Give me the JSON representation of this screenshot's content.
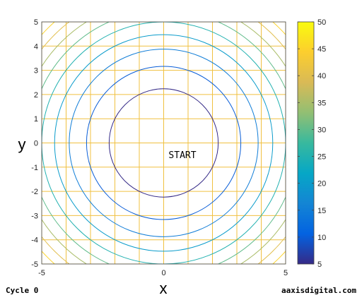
{
  "chart_data": {
    "type": "contour",
    "title": "",
    "xlabel": "x",
    "ylabel": "y",
    "xlim": [
      -5,
      5
    ],
    "ylim": [
      -5,
      5
    ],
    "xticks": [
      -5,
      0,
      5
    ],
    "yticks": [
      -5,
      -4,
      -3,
      -2,
      -1,
      0,
      1,
      2,
      3,
      4,
      5
    ],
    "grid_step": 1,
    "grid": true,
    "grid_color": "#f0c040",
    "surface": "x^2 + y^2",
    "contour_levels": [
      5,
      10,
      15,
      20,
      25,
      30,
      35,
      40,
      45,
      50
    ],
    "colorbar": {
      "min": 5,
      "max": 50,
      "ticks": [
        5,
        10,
        15,
        20,
        25,
        30,
        35,
        40,
        45,
        50
      ],
      "colormap": "parula",
      "colors": [
        "#352a87",
        "#0363e1",
        "#1485d4",
        "#06a7c6",
        "#38b99e",
        "#92bf73",
        "#d9ba56",
        "#fcce2e",
        "#f9fb0e"
      ]
    },
    "annotations": [
      "START"
    ]
  },
  "footer": {
    "cycle": "Cycle 0",
    "site": "aaxisdigital.com"
  }
}
